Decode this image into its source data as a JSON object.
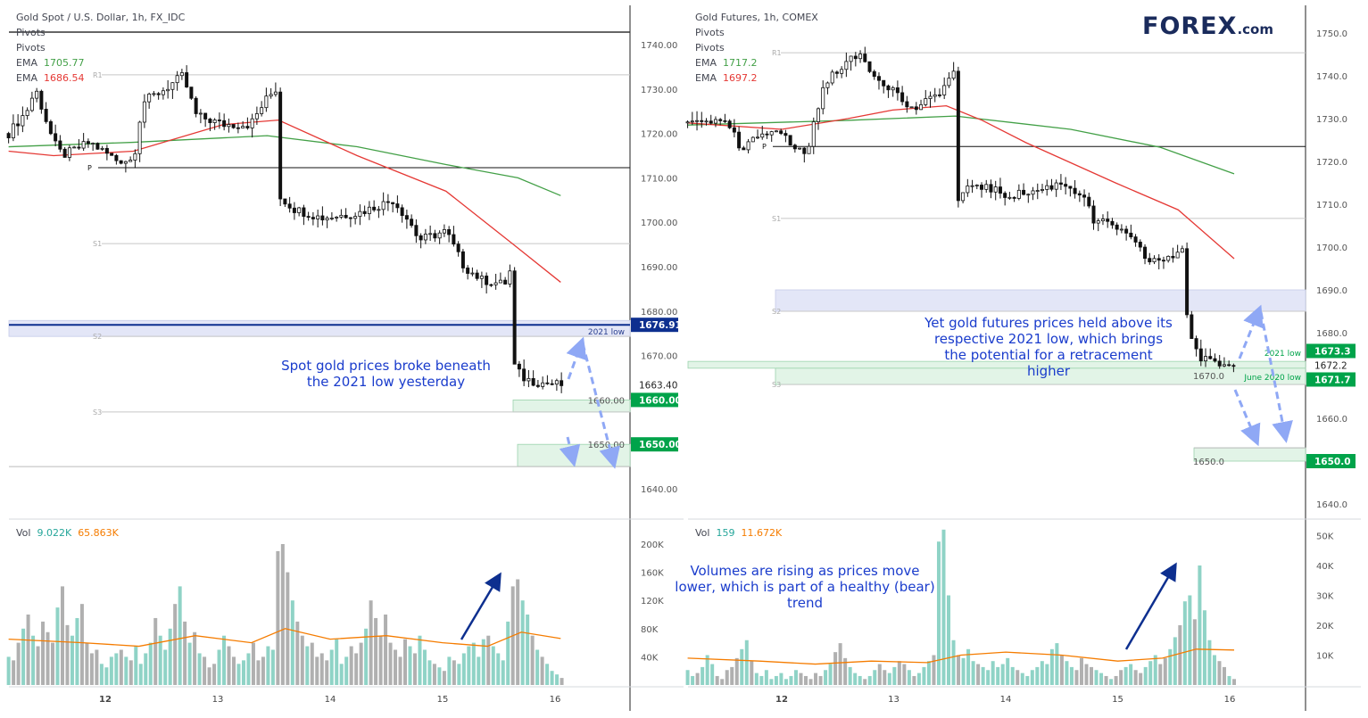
{
  "logo": {
    "text": "FOREX.com"
  },
  "colors": {
    "up_volume": "#8fd3c6",
    "down_volume": "#b0b0b0",
    "ema_fast": "#e53935",
    "ema_slow": "#43a047",
    "vol_ma": "#f57c00",
    "green_label": "#00a34a",
    "blue_label": "#0d2f8f",
    "arrow_dashed": "#8fa8f5",
    "arrow_solid": "#0d2f8f"
  },
  "left": {
    "title": "Gold Spot / U.S. Dollar, 1h, FX_IDC",
    "indicators": [
      "Pivots",
      "Pivots"
    ],
    "ema_label": "EMA",
    "ema_slow_value": "1705.77",
    "ema_fast_value": "1686.54",
    "vol_label": "Vol",
    "vol_value": "9.022K",
    "vol_ma_value": "65.863K",
    "annotation": "Spot gold prices broke beneath the 2021 low yesterday",
    "zone_label": "2021 low",
    "price_labels": [
      {
        "text": "1676.91",
        "value": 1676.91,
        "kind": "blue"
      },
      {
        "text": "1663.40",
        "value": 1663.4,
        "kind": "plain"
      },
      {
        "text": "1660.00",
        "value": 1660,
        "kind": "green"
      },
      {
        "text": "1650.00",
        "value": 1650,
        "kind": "green"
      }
    ],
    "pivots": [
      {
        "label": "R1",
        "value": 1733.2
      },
      {
        "label": "P",
        "value": 1712.3
      },
      {
        "label": "S1",
        "value": 1695.2
      },
      {
        "label": "S2",
        "value": 1674.3
      },
      {
        "label": "S3",
        "value": 1657.3
      }
    ]
  },
  "right": {
    "title": "Gold Futures, 1h, COMEX",
    "indicators": [
      "Pivots",
      "Pivots"
    ],
    "ema_label": "EMA",
    "ema_slow_value": "1717.2",
    "ema_fast_value": "1697.2",
    "vol_label": "Vol",
    "vol_value": "159",
    "vol_ma_value": "11.672K",
    "annotation": "Yet gold futures prices held above its respective 2021 low, which brings the potential for a retracement higher",
    "zone_label_1": "2021 low",
    "zone_label_2": "June 2020 low",
    "volume_annotation": "Volumes are rising as prices move lower, which is part of a healthy (bear) trend",
    "price_labels": [
      {
        "text": "1673.3",
        "value": 1673.3,
        "kind": "green"
      },
      {
        "text": "1672.2",
        "value": 1672.2,
        "kind": "plain"
      },
      {
        "text": "1671.7",
        "value": 1671.7,
        "kind": "green"
      },
      {
        "text": "1650.0",
        "value": 1650,
        "kind": "green"
      }
    ],
    "pivots": [
      {
        "label": "R1",
        "value": 1745.4
      },
      {
        "label": "P",
        "value": 1723.5
      },
      {
        "label": "S1",
        "value": 1706.7
      },
      {
        "label": "S2",
        "value": 1685
      },
      {
        "label": "S3",
        "value": 1667.9
      }
    ]
  },
  "chart_data": [
    {
      "type": "candlestick",
      "title": "Gold Spot / U.S. Dollar, 1h, FX_IDC",
      "x_tick_labels": [
        "12",
        "13",
        "14",
        "15",
        "16"
      ],
      "x_ticks": [
        12,
        13,
        14,
        15,
        16
      ],
      "y_ticks": [
        "1640.00",
        "1650.00",
        "1660.00",
        "1670.00",
        "1680.00",
        "1690.00",
        "1700.00",
        "1710.00",
        "1720.00",
        "1730.00",
        "1740.00"
      ],
      "ylim": [
        1630,
        1750
      ],
      "close_path": [
        [
          11.14,
          1720
        ],
        [
          11.3,
          1725
        ],
        [
          11.38,
          1730
        ],
        [
          11.54,
          1718
        ],
        [
          11.62,
          1715
        ],
        [
          11.86,
          1718
        ],
        [
          12.1,
          1714
        ],
        [
          12.25,
          1714
        ],
        [
          12.33,
          1727
        ],
        [
          12.53,
          1730
        ],
        [
          12.69,
          1733
        ],
        [
          12.81,
          1724
        ],
        [
          13.05,
          1722
        ],
        [
          13.29,
          1722
        ],
        [
          13.44,
          1728
        ],
        [
          13.52,
          1730
        ],
        [
          13.54,
          1706
        ],
        [
          13.68,
          1703
        ],
        [
          13.92,
          1701
        ],
        [
          14.24,
          1702
        ],
        [
          14.56,
          1705
        ],
        [
          14.71,
          1700
        ],
        [
          14.79,
          1696
        ],
        [
          15.03,
          1698
        ],
        [
          15.19,
          1690
        ],
        [
          15.35,
          1687
        ],
        [
          15.55,
          1686
        ],
        [
          15.6,
          1689
        ],
        [
          15.63,
          1668
        ],
        [
          15.71,
          1665
        ],
        [
          15.83,
          1664
        ],
        [
          16.06,
          1663.4
        ]
      ],
      "ema_fast": [
        [
          11.14,
          1716
        ],
        [
          11.54,
          1715
        ],
        [
          12.25,
          1716
        ],
        [
          13.05,
          1722
        ],
        [
          13.54,
          1723
        ],
        [
          14.24,
          1715
        ],
        [
          15.03,
          1707
        ],
        [
          15.63,
          1695
        ],
        [
          16.05,
          1686.5
        ]
      ],
      "ema_slow": [
        [
          11.14,
          1717
        ],
        [
          12.25,
          1718
        ],
        [
          13.44,
          1719.5
        ],
        [
          14.24,
          1717
        ],
        [
          15.03,
          1713
        ],
        [
          15.67,
          1710
        ],
        [
          16.05,
          1706
        ]
      ],
      "zones": [
        {
          "from": 1674.3,
          "to": 1677.9,
          "color": "blue"
        },
        {
          "from": 1657.3,
          "to": 1660,
          "color": "green"
        },
        {
          "from": 1645,
          "to": 1650,
          "color": "green"
        }
      ],
      "lines": [
        1742.8,
        1645
      ],
      "volume_ticks": [
        "40K",
        "80K",
        "120K",
        "160K",
        "200K"
      ],
      "volume": [
        40,
        35,
        60,
        80,
        100,
        70,
        55,
        90,
        75,
        60,
        110,
        140,
        85,
        70,
        95,
        115,
        60,
        45,
        50,
        30,
        25,
        40,
        45,
        50,
        40,
        35,
        55,
        30,
        45,
        60,
        95,
        70,
        50,
        80,
        115,
        140,
        90,
        60,
        75,
        45,
        40,
        25,
        30,
        50,
        70,
        55,
        40,
        30,
        35,
        45,
        60,
        35,
        40,
        55,
        50,
        190,
        200,
        160,
        120,
        90,
        70,
        55,
        60,
        40,
        45,
        35,
        50,
        65,
        30,
        40,
        55,
        45,
        60,
        80,
        120,
        95,
        70,
        100,
        60,
        50,
        40,
        65,
        55,
        45,
        70,
        50,
        35,
        30,
        25,
        20,
        40,
        35,
        30,
        45,
        55,
        60,
        40,
        65,
        70,
        55,
        45,
        35,
        90,
        140,
        150,
        120,
        100,
        70,
        50,
        40,
        30,
        20,
        15,
        10
      ],
      "volume_ma": [
        [
          11.14,
          65
        ],
        [
          11.8,
          60
        ],
        [
          12.3,
          55
        ],
        [
          12.8,
          70
        ],
        [
          13.3,
          60
        ],
        [
          13.6,
          80
        ],
        [
          14.0,
          65
        ],
        [
          14.5,
          70
        ],
        [
          15.0,
          60
        ],
        [
          15.4,
          55
        ],
        [
          15.7,
          75
        ],
        [
          16.05,
          66
        ]
      ]
    },
    {
      "type": "candlestick",
      "title": "Gold Futures, 1h, COMEX",
      "x_tick_labels": [
        "12",
        "13",
        "14",
        "15",
        "16"
      ],
      "x_ticks": [
        12,
        13,
        14,
        15,
        16
      ],
      "y_ticks": [
        "1640.0",
        "1650.0",
        "1660.0",
        "1670.0",
        "1680.0",
        "1690.0",
        "1700.0",
        "1710.0",
        "1720.0",
        "1730.0",
        "1740.0",
        "1750.0"
      ],
      "ylim": [
        1630,
        1755
      ],
      "close_path": [
        [
          11.16,
          1729
        ],
        [
          11.31,
          1730
        ],
        [
          11.55,
          1728
        ],
        [
          11.63,
          1722
        ],
        [
          11.79,
          1726
        ],
        [
          11.95,
          1728
        ],
        [
          12.11,
          1723
        ],
        [
          12.23,
          1722
        ],
        [
          12.31,
          1732
        ],
        [
          12.39,
          1738
        ],
        [
          12.51,
          1742
        ],
        [
          12.71,
          1745
        ],
        [
          12.83,
          1740
        ],
        [
          12.99,
          1737
        ],
        [
          13.15,
          1732
        ],
        [
          13.31,
          1734
        ],
        [
          13.47,
          1738
        ],
        [
          13.55,
          1742
        ],
        [
          13.56,
          1710
        ],
        [
          13.71,
          1715
        ],
        [
          14.02,
          1712
        ],
        [
          14.26,
          1713
        ],
        [
          14.5,
          1715
        ],
        [
          14.7,
          1712
        ],
        [
          14.78,
          1706
        ],
        [
          14.98,
          1705
        ],
        [
          15.18,
          1700
        ],
        [
          15.26,
          1697
        ],
        [
          15.46,
          1697
        ],
        [
          15.58,
          1700
        ],
        [
          15.63,
          1680
        ],
        [
          15.74,
          1674
        ],
        [
          15.86,
          1673
        ],
        [
          16.04,
          1672.2
        ]
      ],
      "ema_fast": [
        [
          11.16,
          1729
        ],
        [
          12.0,
          1727.5
        ],
        [
          12.59,
          1730
        ],
        [
          12.99,
          1732
        ],
        [
          13.47,
          1733
        ],
        [
          13.79,
          1729.6
        ],
        [
          14.18,
          1724.4
        ],
        [
          14.98,
          1715
        ],
        [
          15.54,
          1708.7
        ],
        [
          16.04,
          1697.3
        ]
      ],
      "ema_slow": [
        [
          11.16,
          1728.5
        ],
        [
          12.59,
          1729.6
        ],
        [
          13.55,
          1730.6
        ],
        [
          14.58,
          1727.5
        ],
        [
          15.38,
          1723.3
        ],
        [
          16.04,
          1717.1
        ]
      ],
      "zones": [
        {
          "from": 1685,
          "to": 1690,
          "color": "blue"
        },
        {
          "from": 1671.7,
          "to": 1673.3,
          "color": "green"
        },
        {
          "from": 1667.9,
          "to": 1671.7,
          "color": "green"
        },
        {
          "from": 1650,
          "to": 1653.1,
          "color": "green"
        }
      ],
      "lines": [
        1653.1
      ],
      "volume_ticks": [
        "10K",
        "20K",
        "30K",
        "40K",
        "50K"
      ],
      "volume": [
        5,
        3,
        4,
        6,
        10,
        7,
        3,
        2,
        5,
        6,
        9,
        12,
        15,
        8,
        4,
        3,
        5,
        2,
        3,
        4,
        2,
        3,
        5,
        4,
        3,
        2,
        4,
        3,
        5,
        7,
        11,
        14,
        9,
        6,
        4,
        3,
        2,
        3,
        5,
        7,
        5,
        4,
        6,
        8,
        7,
        5,
        3,
        4,
        6,
        8,
        10,
        48,
        52,
        30,
        15,
        10,
        9,
        12,
        8,
        7,
        6,
        5,
        8,
        6,
        7,
        9,
        6,
        5,
        4,
        3,
        5,
        6,
        8,
        7,
        12,
        14,
        10,
        8,
        6,
        5,
        9,
        7,
        6,
        5,
        4,
        3,
        2,
        3,
        5,
        6,
        7,
        5,
        4,
        6,
        8,
        10,
        7,
        9,
        12,
        16,
        20,
        28,
        30,
        22,
        40,
        25,
        15,
        10,
        8,
        6,
        3,
        2
      ],
      "volume_ma": [
        [
          11.16,
          9
        ],
        [
          11.8,
          8
        ],
        [
          12.3,
          7
        ],
        [
          12.8,
          8
        ],
        [
          13.3,
          7.5
        ],
        [
          13.6,
          10
        ],
        [
          14.0,
          11
        ],
        [
          14.5,
          10
        ],
        [
          15.0,
          8
        ],
        [
          15.4,
          9
        ],
        [
          15.7,
          12
        ],
        [
          16.04,
          11.7
        ]
      ]
    }
  ]
}
